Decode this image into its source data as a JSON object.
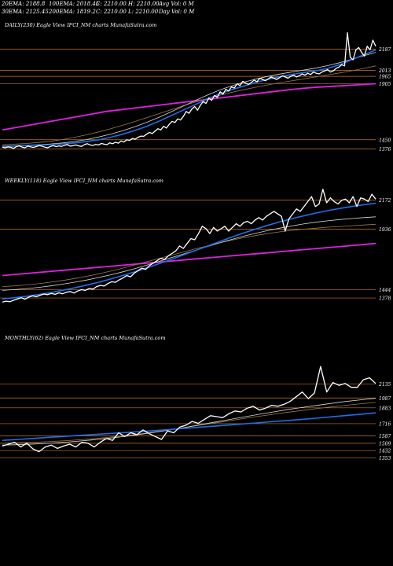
{
  "header": {
    "row1": [
      {
        "label": "20EMA: 2188.8"
      },
      {
        "label": "100EMA: 2018.45"
      },
      {
        "label": "C: 2210.00"
      },
      {
        "label": "H: 2210.00"
      },
      {
        "label": "Avg Vol: 0  M"
      }
    ],
    "row2": [
      {
        "label": "30EMA: 2125.45"
      },
      {
        "label": "200EMA: 1819.2"
      },
      {
        "label": "C: 2210.00"
      },
      {
        "label": "L: 2210.00"
      },
      {
        "label": "Day Vol: 0  M"
      }
    ]
  },
  "colors": {
    "background": "#000000",
    "price": "#ffffff",
    "level_line": "#c87828",
    "ma_blue": "#1f6fe6",
    "ma_magenta": "#e020e0",
    "ma_light": "#d8d8d8",
    "ma_dark": "#9a7a4a"
  },
  "chart_data": [
    {
      "type": "line",
      "title": "DAILY(230) Eagle  View  IFCI_NM charts MunafaSutra.com",
      "levels": [
        2187,
        2013,
        1965,
        1905,
        1450,
        1376
      ],
      "ylim": [
        1340,
        2330
      ],
      "series": [
        {
          "key": "price",
          "points": [
            1390,
            1385,
            1392,
            1388,
            1380,
            1395,
            1400,
            1390,
            1385,
            1398,
            1392,
            1388,
            1395,
            1402,
            1398,
            1390,
            1385,
            1396,
            1402,
            1394,
            1400,
            1396,
            1405,
            1410,
            1398,
            1402,
            1408,
            1400,
            1396,
            1410,
            1418,
            1408,
            1404,
            1412,
            1408,
            1420,
            1414,
            1410,
            1425,
            1418,
            1430,
            1422,
            1440,
            1432,
            1450,
            1445,
            1460,
            1455,
            1470,
            1480,
            1478,
            1495,
            1510,
            1500,
            1520,
            1540,
            1530,
            1560,
            1545,
            1575,
            1600,
            1590,
            1620,
            1610,
            1640,
            1680,
            1665,
            1700,
            1720,
            1690,
            1730,
            1760,
            1745,
            1790,
            1770,
            1810,
            1795,
            1840,
            1820,
            1860,
            1845,
            1880,
            1870,
            1905,
            1890,
            1925,
            1910,
            1900,
            1915,
            1935,
            1920,
            1950,
            1940,
            1930,
            1945,
            1960,
            1950,
            1940,
            1955,
            1970,
            1960,
            1950,
            1965,
            1975,
            1960,
            1970,
            1985,
            1975,
            1990,
            1980,
            2000,
            1990,
            1985,
            2000,
            2010,
            2020,
            2000,
            2010,
            2030,
            2040,
            2060,
            2050,
            2320,
            2120,
            2100,
            2180,
            2200,
            2160,
            2130,
            2210,
            2180,
            2260,
            2210
          ]
        },
        {
          "key": "ma_blue",
          "points": [
            1395,
            1398,
            1402,
            1406,
            1410,
            1416,
            1424,
            1435,
            1450,
            1470,
            1495,
            1525,
            1560,
            1600,
            1645,
            1690,
            1735,
            1780,
            1820,
            1855,
            1885,
            1915,
            1940,
            1962,
            1980,
            1996,
            2010,
            2030,
            2060,
            2100,
            2140,
            2180
          ]
        },
        {
          "key": "ma_magenta",
          "points": [
            1530,
            1560,
            1590,
            1620,
            1650,
            1680,
            1700,
            1720,
            1740,
            1760,
            1780,
            1800,
            1820,
            1840,
            1860,
            1875,
            1885,
            1895,
            1905
          ]
        },
        {
          "key": "ma_light",
          "points": [
            1400,
            1402,
            1406,
            1410,
            1416,
            1424,
            1436,
            1452,
            1472,
            1496,
            1524,
            1556,
            1592,
            1632,
            1676,
            1722,
            1768,
            1812,
            1852,
            1886,
            1916,
            1942,
            1964,
            1983,
            2000,
            2016,
            2032,
            2052,
            2076,
            2104,
            2132,
            2160
          ]
        },
        {
          "key": "ma_dark",
          "points": [
            1410,
            1414,
            1420,
            1428,
            1438,
            1452,
            1470,
            1490,
            1514,
            1540,
            1568,
            1598,
            1630,
            1662,
            1694,
            1726,
            1756,
            1784,
            1810,
            1834,
            1856,
            1876,
            1895,
            1912,
            1928,
            1944,
            1960,
            1976,
            1993,
            2010,
            2030,
            2050
          ]
        }
      ]
    },
    {
      "type": "line",
      "title": "WEEKLY(118) Eagle  View  IFCI_NM charts MunafaSutra.com",
      "levels": [
        2172,
        1936,
        1444,
        1378
      ],
      "ylim": [
        1270,
        2290
      ],
      "series": [
        {
          "key": "price",
          "points": [
            1345,
            1352,
            1348,
            1360,
            1370,
            1380,
            1368,
            1385,
            1395,
            1388,
            1400,
            1410,
            1405,
            1415,
            1408,
            1420,
            1412,
            1425,
            1430,
            1418,
            1435,
            1445,
            1440,
            1455,
            1450,
            1470,
            1480,
            1475,
            1495,
            1510,
            1505,
            1525,
            1540,
            1560,
            1550,
            1580,
            1600,
            1620,
            1610,
            1640,
            1660,
            1680,
            1700,
            1690,
            1720,
            1740,
            1760,
            1800,
            1780,
            1820,
            1860,
            1850,
            1900,
            1960,
            1940,
            1900,
            1950,
            1920,
            1940,
            1960,
            1920,
            1950,
            1980,
            1960,
            1990,
            2000,
            1980,
            2010,
            2030,
            2010,
            2040,
            2060,
            2080,
            2060,
            2040,
            1920,
            2020,
            2060,
            2100,
            2080,
            2120,
            2160,
            2200,
            2120,
            2140,
            2260,
            2150,
            2190,
            2160,
            2140,
            2170,
            2180,
            2150,
            2200,
            2120,
            2190,
            2180,
            2160,
            2220,
            2180
          ]
        },
        {
          "key": "ma_blue",
          "points": [
            1370,
            1380,
            1392,
            1406,
            1422,
            1440,
            1460,
            1482,
            1506,
            1532,
            1560,
            1590,
            1622,
            1656,
            1690,
            1726,
            1762,
            1798,
            1834,
            1870,
            1904,
            1936,
            1966,
            1994,
            2020,
            2044,
            2066,
            2086,
            2104,
            2120,
            2134,
            2146
          ]
        },
        {
          "key": "ma_magenta",
          "points": [
            1560,
            1580,
            1600,
            1620,
            1640,
            1660,
            1680,
            1700,
            1720,
            1740,
            1760,
            1780,
            1800,
            1820
          ]
        },
        {
          "key": "ma_light",
          "points": [
            1440,
            1446,
            1454,
            1464,
            1476,
            1490,
            1506,
            1524,
            1544,
            1566,
            1590,
            1616,
            1644,
            1674,
            1704,
            1734,
            1764,
            1794,
            1824,
            1852,
            1878,
            1902,
            1924,
            1944,
            1962,
            1978,
            1992,
            2004,
            2014,
            2022,
            2030,
            2036
          ]
        },
        {
          "key": "ma_dark",
          "points": [
            1470,
            1476,
            1484,
            1494,
            1506,
            1520,
            1536,
            1554,
            1574,
            1596,
            1620,
            1646,
            1672,
            1698,
            1724,
            1750,
            1776,
            1800,
            1824,
            1846,
            1866,
            1884,
            1900,
            1914,
            1926,
            1936,
            1944,
            1952,
            1958,
            1964,
            1970,
            1976
          ]
        }
      ]
    },
    {
      "type": "line",
      "title": "MONTHLY(62) Eagle  View  IFCI_NM charts MunafaSutra.com",
      "levels": [
        2135,
        1987,
        1883,
        1716,
        1587,
        1509,
        1432,
        1353
      ],
      "ylim": [
        380,
        2570
      ],
      "series": [
        {
          "key": "price",
          "points": [
            1480,
            1500,
            1520,
            1470,
            1510,
            1450,
            1420,
            1470,
            1490,
            1455,
            1480,
            1500,
            1470,
            1520,
            1510,
            1470,
            1520,
            1560,
            1540,
            1620,
            1580,
            1620,
            1600,
            1650,
            1610,
            1580,
            1550,
            1640,
            1620,
            1680,
            1700,
            1740,
            1720,
            1760,
            1800,
            1790,
            1780,
            1820,
            1850,
            1840,
            1880,
            1900,
            1860,
            1880,
            1910,
            1900,
            1920,
            1950,
            2000,
            2050,
            1980,
            2040,
            2320,
            2050,
            2150,
            2120,
            2140,
            2100,
            2100,
            2180,
            2200,
            2140
          ]
        },
        {
          "key": "ma_blue",
          "points": [
            1540,
            1550,
            1560,
            1570,
            1580,
            1590,
            1600,
            1610,
            1620,
            1630,
            1640,
            1652,
            1664,
            1676,
            1688,
            1700,
            1712,
            1724,
            1736,
            1748,
            1760,
            1774,
            1788,
            1802,
            1816,
            1830
          ]
        },
        {
          "key": "ma_light",
          "points": [
            1490,
            1494,
            1500,
            1508,
            1518,
            1530,
            1544,
            1560,
            1578,
            1598,
            1620,
            1644,
            1670,
            1698,
            1726,
            1754,
            1782,
            1810,
            1836,
            1862,
            1886,
            1908,
            1930,
            1950,
            1968,
            1984
          ]
        },
        {
          "key": "ma_dark",
          "points": [
            1510,
            1514,
            1520,
            1526,
            1534,
            1544,
            1556,
            1570,
            1586,
            1604,
            1624,
            1646,
            1670,
            1694,
            1718,
            1742,
            1766,
            1790,
            1812,
            1834,
            1854,
            1874,
            1892,
            1910,
            1926,
            1940
          ]
        }
      ]
    }
  ]
}
